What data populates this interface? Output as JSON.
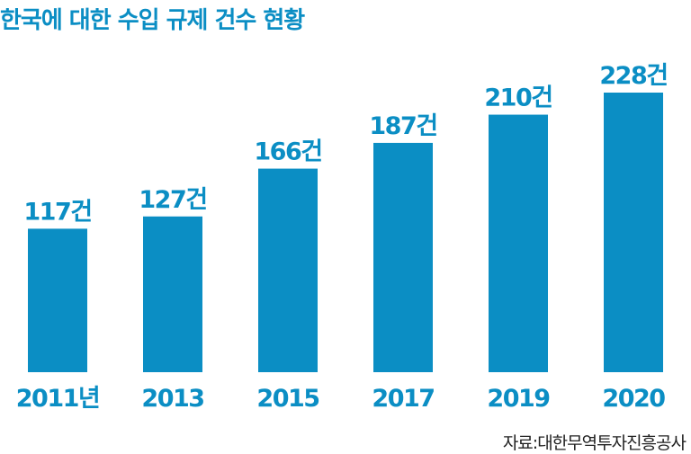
{
  "chart_data": {
    "type": "bar",
    "title": "한국에 대한 수입 규제 건수 현황",
    "categories": [
      "2011년",
      "2013",
      "2015",
      "2017",
      "2019",
      "2020"
    ],
    "values": [
      117,
      127,
      166,
      187,
      210,
      228
    ],
    "data_labels": [
      "117건",
      "127건",
      "166건",
      "187건",
      "210건",
      "228건"
    ],
    "xlabel": "",
    "ylabel": "",
    "ylim": [
      0,
      228
    ],
    "grid": false,
    "legend": "none"
  },
  "source": "자료:대한무역투자진흥공사",
  "colors": {
    "bar": "#0b8ec4",
    "label": "#0b8ec4",
    "title": "#0b8ec4"
  }
}
